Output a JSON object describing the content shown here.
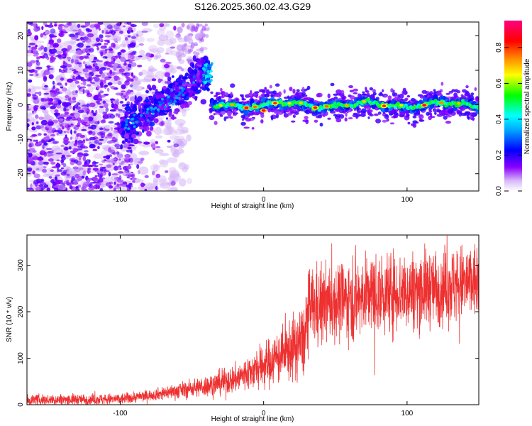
{
  "title": "S126.2025.360.02.43.G29",
  "chart_data": [
    {
      "type": "heatmap",
      "xlabel": "Height of straight line (km)",
      "ylabel": "Frequency (Hz)",
      "xlim": [
        -165,
        150
      ],
      "ylim": [
        -25,
        24
      ],
      "xticks": [
        -100,
        0,
        100
      ],
      "xtick_labels": [
        "-100",
        "0",
        "100"
      ],
      "yticks": [
        -20,
        -10,
        0,
        10,
        20
      ],
      "ytick_labels": [
        "-20",
        "-10",
        "0",
        "10",
        "20"
      ],
      "colorbar": {
        "label": "Normalized spectral amplitude",
        "range": [
          0,
          0.95
        ],
        "ticks": [
          0.0,
          0.2,
          0.4,
          0.6,
          0.8
        ],
        "tick_labels": [
          "0.0",
          "0.2",
          "0.4",
          "0.6",
          "0.8"
        ],
        "colors": [
          "#f4eafc",
          "#8a00ff",
          "#0000ff",
          "#00aaff",
          "#00ffff",
          "#00ff00",
          "#ffff00",
          "#ff8800",
          "#ff0000",
          "#ff0080"
        ]
      },
      "features": [
        {
          "name": "noise-region",
          "x_range": [
            -165,
            -95
          ],
          "freq_range": [
            -25,
            24
          ],
          "amplitude": 0.05
        },
        {
          "name": "rising-ridge",
          "x": [
            -100,
            -80,
            -60,
            -40
          ],
          "freq": [
            -7,
            -2,
            3,
            10
          ],
          "amplitude": 0.15
        },
        {
          "name": "stable-signal",
          "x_range": [
            -35,
            150
          ],
          "freq": 0,
          "amplitude_range": [
            0.2,
            0.9
          ]
        }
      ]
    },
    {
      "type": "line",
      "xlabel": "Height of straight line (km)",
      "ylabel": "SNR (10 * v/v)",
      "xlim": [
        -165,
        150
      ],
      "ylim": [
        0,
        365
      ],
      "xticks": [
        -100,
        0,
        100
      ],
      "xtick_labels": [
        "-100",
        "0",
        "100"
      ],
      "yticks": [
        0,
        100,
        200,
        300
      ],
      "ytick_labels": [
        "0",
        "100",
        "200",
        "300"
      ],
      "color": "#ee3030",
      "trend": {
        "x": [
          -165,
          -100,
          -80,
          -60,
          -40,
          -20,
          0,
          20,
          28,
          32,
          60,
          100,
          150
        ],
        "y": [
          10,
          12,
          20,
          30,
          40,
          55,
          85,
          120,
          140,
          210,
          230,
          245,
          265
        ]
      }
    }
  ]
}
